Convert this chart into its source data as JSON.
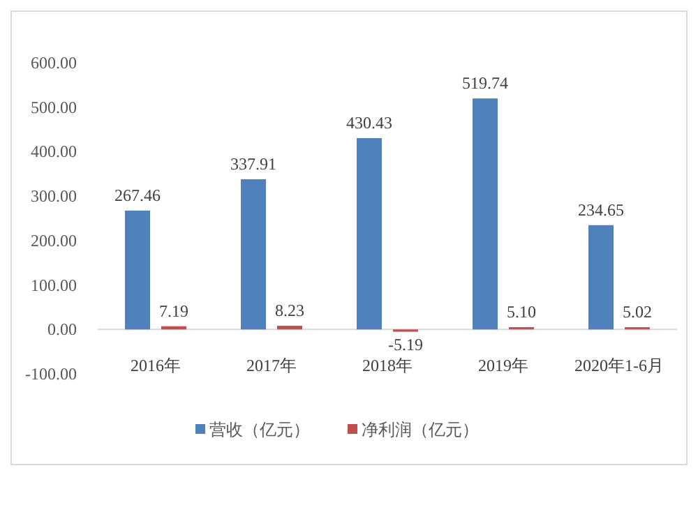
{
  "chart_data": {
    "type": "bar",
    "categories": [
      "2016年",
      "2017年",
      "2018年",
      "2019年",
      "2020年1-6月"
    ],
    "series": [
      {
        "name": "营收（亿元）",
        "color": "#4f81bd",
        "values": [
          267.46,
          337.91,
          430.43,
          519.74,
          234.65
        ],
        "value_labels": [
          "267.46",
          "337.91",
          "430.43",
          "519.74",
          "234.65"
        ]
      },
      {
        "name": "净利润（亿元）",
        "color": "#c0504d",
        "values": [
          7.19,
          8.23,
          -5.19,
          5.1,
          5.02
        ],
        "value_labels": [
          "7.19",
          "8.23",
          "-5.19",
          "5.10",
          "5.02"
        ]
      }
    ],
    "ylim": [
      -100,
      600
    ],
    "yticks": [
      {
        "value": -100,
        "label": "-100.00"
      },
      {
        "value": 0,
        "label": "0.00"
      },
      {
        "value": 100,
        "label": "100.00"
      },
      {
        "value": 200,
        "label": "200.00"
      },
      {
        "value": 300,
        "label": "300.00"
      },
      {
        "value": 400,
        "label": "400.00"
      },
      {
        "value": 500,
        "label": "500.00"
      },
      {
        "value": 600,
        "label": "600.00"
      }
    ],
    "legend": "bottom",
    "grid": false
  }
}
